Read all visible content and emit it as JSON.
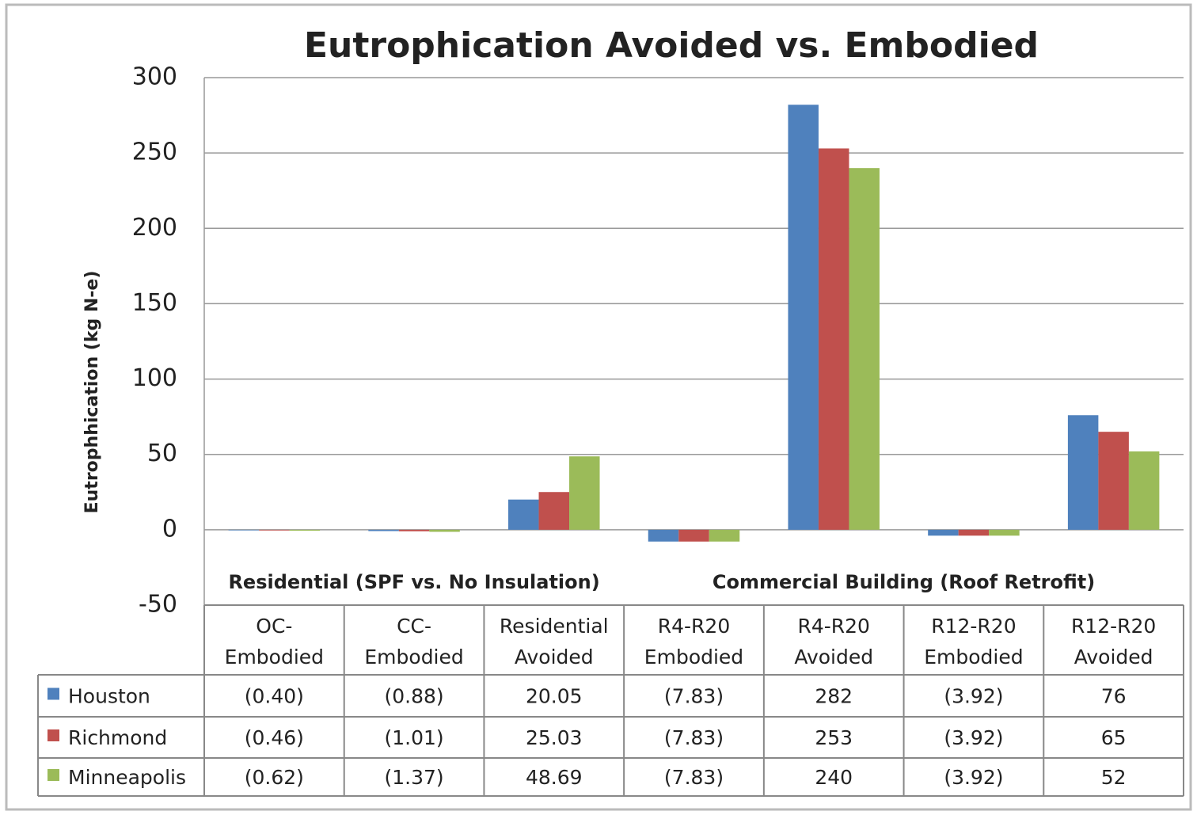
{
  "chart_data": {
    "type": "bar",
    "title": "Eutrophication Avoided vs. Embodied",
    "y_label": "Eutrophhication  (kg N-e)",
    "groups": [
      {
        "label": "Residential  (SPF vs. No Insulation)",
        "categories": [
          "OC- Embodied",
          "CC- Embodied",
          "Residential Avoided"
        ]
      },
      {
        "label": "Commercial Building  (Roof Retrofit)",
        "categories": [
          "R4-R20 Embodied",
          "R4-R20 Avoided",
          "R12-R20 Embodied",
          "R12-R20 Avoided"
        ]
      }
    ],
    "series": [
      {
        "name": "Houston",
        "color": "#4f81bd",
        "values": [
          -0.4,
          -0.88,
          20.05,
          -7.83,
          282,
          -3.92,
          76
        ],
        "value_labels": [
          "(0.40)",
          "(0.88)",
          "20.05",
          "(7.83)",
          "282",
          "(3.92)",
          "76"
        ]
      },
      {
        "name": "Richmond",
        "color": "#c0504d",
        "values": [
          -0.46,
          -1.01,
          25.03,
          -7.83,
          253,
          -3.92,
          65
        ],
        "value_labels": [
          "(0.46)",
          "(1.01)",
          "25.03",
          "(7.83)",
          "253",
          "(3.92)",
          "65"
        ]
      },
      {
        "name": "Minneapolis",
        "color": "#9bbb59",
        "values": [
          -0.62,
          -1.37,
          48.69,
          -7.83,
          240,
          -3.92,
          52
        ],
        "value_labels": [
          "(0.62)",
          "(1.37)",
          "48.69",
          "(7.83)",
          "240",
          "(3.92)",
          "52"
        ]
      }
    ],
    "ylim": [
      -50,
      300
    ],
    "yticks": [
      -50,
      0,
      50,
      100,
      150,
      200,
      250,
      300
    ],
    "grid": true
  }
}
